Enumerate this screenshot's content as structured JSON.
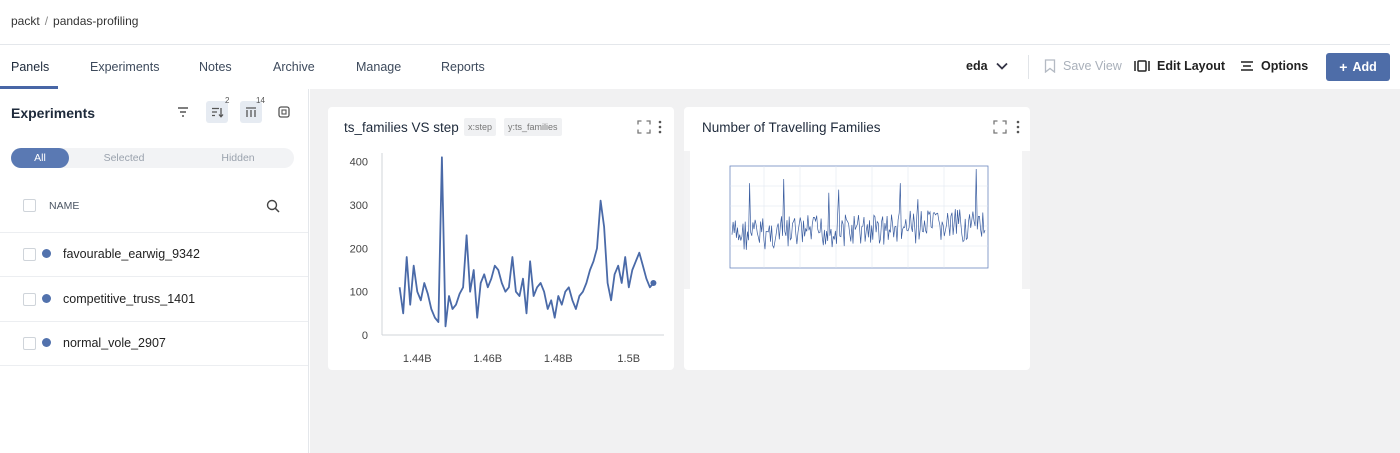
{
  "breadcrumb": {
    "org": "packt",
    "separator": "/",
    "project": "pandas-profiling"
  },
  "nav": {
    "tabs": [
      "Panels",
      "Experiments",
      "Notes",
      "Archive",
      "Manage",
      "Reports"
    ],
    "active_tab": "Panels",
    "view_select": "eda",
    "save_view": "Save View",
    "edit_layout": "Edit Layout",
    "options": "Options",
    "add": "Add"
  },
  "sidebar": {
    "title": "Experiments",
    "sort_badge": "2",
    "columns_badge": "14",
    "filters": [
      "All",
      "Selected",
      "Hidden"
    ],
    "active_filter": "All",
    "column_header": "NAME",
    "experiments": [
      {
        "name": "favourable_earwig_9342",
        "color": "#5272ad"
      },
      {
        "name": "competitive_truss_1401",
        "color": "#5272ad"
      },
      {
        "name": "normal_vole_2907",
        "color": "#5272ad"
      }
    ]
  },
  "panels": [
    {
      "title": "ts_families VS step",
      "x_chip": "x:step",
      "y_chip": "y:ts_families"
    },
    {
      "title": "Number of Travelling Families"
    }
  ],
  "chart_data": {
    "type": "line",
    "x_tick_labels": [
      "1.44B",
      "1.46B",
      "1.48B",
      "1.5B"
    ],
    "y_ticks": [
      0,
      100,
      200,
      300,
      400
    ],
    "xlim": [
      1430000000.0,
      1510000000.0
    ],
    "ylim": [
      0,
      420
    ],
    "color": "#4a6aa8",
    "x": [
      1435000000,
      1436000000,
      1437000000,
      1438000000,
      1439000000,
      1440000000,
      1441000000,
      1442000000,
      1443000000,
      1444000000,
      1445000000,
      1446000000,
      1447000000,
      1448000000,
      1449000000,
      1450000000,
      1451000000,
      1452000000,
      1453000000,
      1454000000,
      1455000000,
      1456000000,
      1457000000,
      1458000000,
      1459000000,
      1460000000,
      1461000000,
      1462000000,
      1463000000,
      1464000000,
      1465000000,
      1466000000,
      1467000000,
      1468000000,
      1469000000,
      1470000000,
      1471000000,
      1472000000,
      1473000000,
      1474000000,
      1475000000,
      1476000000,
      1477000000,
      1478000000,
      1479000000,
      1480000000,
      1481000000,
      1482000000,
      1483000000,
      1484000000,
      1485000000,
      1486000000,
      1487000000,
      1488000000,
      1489000000,
      1490000000,
      1491000000,
      1492000000,
      1493000000,
      1494000000,
      1495000000,
      1496000000,
      1497000000,
      1498000000,
      1499000000,
      1500000000,
      1501000000,
      1502000000,
      1503000000,
      1504000000,
      1505000000,
      1506000000,
      1507000000
    ],
    "y": [
      110,
      50,
      180,
      70,
      160,
      100,
      80,
      120,
      95,
      60,
      40,
      30,
      410,
      20,
      90,
      60,
      70,
      95,
      110,
      230,
      100,
      150,
      40,
      120,
      140,
      110,
      130,
      160,
      150,
      120,
      100,
      110,
      180,
      100,
      90,
      130,
      50,
      170,
      90,
      110,
      120,
      100,
      60,
      80,
      40,
      90,
      70,
      100,
      110,
      80,
      60,
      90,
      100,
      120,
      150,
      170,
      200,
      310,
      250,
      120,
      80,
      140,
      160,
      120,
      180,
      110,
      150,
      170,
      190,
      160,
      130,
      110,
      120
    ]
  }
}
